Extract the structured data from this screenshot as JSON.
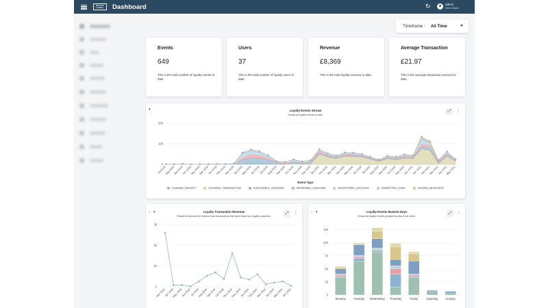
{
  "header": {
    "title": "Dashboard",
    "brand_lines": [
      "WHITE",
      "LABEL"
    ],
    "user_name": "admin",
    "user_org": "Demo Brand"
  },
  "sidebar": {
    "items": [
      {
        "label": "Dashboard"
      },
      {
        "label": "Analytics"
      },
      {
        "label": "Links"
      },
      {
        "label": "Activity"
      },
      {
        "label": "Rewards"
      },
      {
        "label": "Referrals"
      },
      {
        "label": "Marketing"
      },
      {
        "label": "Products"
      },
      {
        "label": "Retailers"
      },
      {
        "label": "Venues"
      },
      {
        "label": "Settings"
      }
    ]
  },
  "timeframe": {
    "label": "Timeframe :",
    "value": "All Time"
  },
  "stats": [
    {
      "title": "Events",
      "value": "649",
      "description": "This is the total number of loyalty events to date."
    },
    {
      "title": "Users",
      "value": "37",
      "description": "This is the total number of loyalty users to date."
    },
    {
      "title": "Revenue",
      "value": "£8,369",
      "description": "This is the total loyalty revenue to date."
    },
    {
      "title": "Average Transaction",
      "value": "£21.97",
      "description": "This is the average transaction amount to date."
    }
  ],
  "icons": {
    "menu": "hamburger-icon",
    "refresh": "refresh-icon",
    "user": "user-circle-icon",
    "expand": "expand-icon",
    "more": "more-vertical-icon",
    "filter": "filter-icon",
    "sort": "sort-down-icon",
    "dropdown": "chevron-down-icon"
  },
  "glyphs": {
    "expand": "⤢",
    "more": "⋮",
    "filter": "▾",
    "sort": "↓",
    "refresh": "↻"
  },
  "charts": {
    "stream": {
      "title": "Loyalty Events Stream",
      "subtitle": "Shows all loyalty events to date.",
      "legend_title": "Event Type"
    },
    "revenue": {
      "title": "Loyalty Transaction Revenue",
      "subtitle": "Shows the amount of revenue from transactions that were linked to a loyalty customer."
    },
    "busiest": {
      "title": "Loyalty Events Busiest Days",
      "subtitle": "Shows all loyalty events grouped by day of the week."
    }
  },
  "chart_data": [
    {
      "type": "area",
      "title": "Loyalty Events Stream",
      "subtitle": "Shows all loyalty events to date.",
      "legend_title": "Event Type",
      "ylim": [
        0,
        200
      ],
      "yticks": [
        0,
        100,
        200
      ],
      "x": [
        "Jul 2018",
        "Aug 2018",
        "Sep 2018",
        "Oct 2018",
        "Nov 2018",
        "Dec 2018",
        "Jan 2019",
        "Feb 2019",
        "Mar 2019",
        "Apr 2019",
        "May 2019",
        "Jun 2019",
        "Jul 2019",
        "Aug 2019",
        "Sep 2019",
        "Oct 2019",
        "Nov 2019",
        "Dec 2019",
        "Jan 2020",
        "Feb 2020",
        "Mar 2020",
        "Apr 2020",
        "May 2020",
        "Jun 2020",
        "Jul 2020",
        "Aug 2020",
        "Sep 2020",
        "Oct 2020",
        "Nov 2020",
        "Dec 2020",
        "Jan 2021",
        "Feb 2021",
        "Mar 2021",
        "Apr 2021",
        "May 2021"
      ],
      "series": [
        {
          "name": "CLAIMED_RECEIPT",
          "color": "#9fc0b0",
          "values": [
            0,
            0,
            0,
            0,
            0,
            0,
            0,
            0,
            0,
            2,
            3,
            3,
            2,
            0,
            0,
            0,
            0,
            0,
            0,
            0,
            0,
            0,
            0,
            0,
            0,
            0,
            0,
            0,
            0,
            0,
            0,
            0,
            0,
            0,
            0
          ]
        },
        {
          "name": "CLEARED_TRANSACTION",
          "color": "#d8d2a0",
          "values": [
            0,
            0,
            0,
            0,
            0,
            0,
            0,
            0,
            0,
            0,
            0,
            0,
            0,
            0,
            0,
            5,
            2,
            3,
            50,
            35,
            28,
            40,
            38,
            35,
            25,
            14,
            28,
            22,
            30,
            28,
            75,
            68,
            5,
            40,
            15
          ]
        },
        {
          "name": "PURCHASED_VOUCHER",
          "color": "#8fb3cf",
          "values": [
            0,
            0,
            0,
            0,
            0,
            0,
            0,
            0,
            0,
            20,
            30,
            28,
            20,
            8,
            3,
            5,
            3,
            5,
            5,
            5,
            3,
            4,
            5,
            4,
            3,
            2,
            3,
            4,
            5,
            4,
            10,
            12,
            5,
            6,
            3
          ]
        },
        {
          "name": "REDEEMED_VOUCHER",
          "color": "#e8a0a6",
          "values": [
            0,
            0,
            0,
            0,
            0,
            0,
            0,
            0,
            0,
            10,
            16,
            14,
            10,
            4,
            2,
            4,
            3,
            4,
            10,
            6,
            5,
            6,
            6,
            5,
            4,
            3,
            4,
            5,
            6,
            5,
            14,
            12,
            4,
            7,
            3
          ]
        },
        {
          "name": "REGISTERED_ACCOUNT",
          "color": "#b9d2dd",
          "values": [
            1,
            1,
            2,
            0,
            1,
            1,
            2,
            1,
            4,
            20,
            15,
            12,
            8,
            2,
            5,
            8,
            5,
            6,
            5,
            5,
            5,
            5,
            5,
            4,
            3,
            3,
            4,
            4,
            5,
            4,
            20,
            10,
            3,
            6,
            2
          ]
        },
        {
          "name": "SUBMITTED_CODE",
          "color": "#b0c8e6",
          "values": [
            0,
            0,
            0,
            0,
            0,
            0,
            0,
            0,
            0,
            5,
            8,
            6,
            4,
            1,
            1,
            2,
            1,
            2,
            3,
            2,
            2,
            2,
            2,
            2,
            1,
            1,
            2,
            2,
            2,
            2,
            10,
            6,
            2,
            3,
            2
          ]
        },
        {
          "name": "VIEWED_MICROSITE",
          "color": "#d8c88e",
          "values": [
            0,
            0,
            0,
            0,
            0,
            0,
            0,
            0,
            0,
            0,
            0,
            0,
            0,
            0,
            0,
            0,
            0,
            0,
            0,
            0,
            0,
            0,
            0,
            0,
            0,
            0,
            0,
            0,
            0,
            0,
            5,
            4,
            2,
            0,
            0
          ]
        }
      ]
    },
    {
      "type": "line",
      "title": "Loyalty Transaction Revenue",
      "subtitle": "Shows the amount of revenue from transactions that were linked to a loyalty customer.",
      "ylim": [
        0,
        3000
      ],
      "yticks": [
        0,
        1000,
        2000,
        3000
      ],
      "ytick_labels": [
        "0",
        "1k",
        "2k",
        "3k"
      ],
      "x": [
        "Mar 2019",
        "Apr 2019",
        "May 2019",
        "Jun 2019",
        "Jul 2019",
        "Aug 2019",
        "Sep 2019",
        "Oct 2019",
        "Nov 2019",
        "Dec 2019",
        "Jan 2020",
        "Feb 2020",
        "Mar 2020",
        "Apr 2020",
        "May 2020",
        "Jun 2020"
      ],
      "series": [
        {
          "color": "#9fc0b0",
          "values": [
            2600,
            80,
            80,
            20,
            250,
            530,
            690,
            380,
            1620,
            450,
            350,
            600,
            120,
            200,
            260,
            40
          ]
        }
      ]
    },
    {
      "type": "bar",
      "stacked": true,
      "title": "Loyalty Events Busiest Days",
      "subtitle": "Shows all loyalty events grouped by day of the week.",
      "ylim": [
        0,
        135
      ],
      "yticks": [
        0,
        25,
        50,
        75,
        100,
        125
      ],
      "categories": [
        "Monday",
        "Tuesday",
        "Wednesday",
        "Thursday",
        "Friday",
        "Saturday",
        "Sunday"
      ],
      "series": [
        {
          "name": "CLAIMED_RECEIPT",
          "color": "#9fc0b0",
          "values": [
            33,
            65,
            82,
            15,
            33,
            7,
            4
          ]
        },
        {
          "name": "PURCHASED_VOUCHER",
          "color": "#8fb3cf",
          "values": [
            2,
            5,
            3,
            25,
            2,
            0,
            0
          ]
        },
        {
          "name": "REDEEMED_VOUCHER",
          "color": "#e8a0a6",
          "values": [
            3,
            3,
            2,
            10,
            3,
            0,
            0
          ]
        },
        {
          "name": "REGISTERED_ACCOUNT",
          "color": "#b9d2dd",
          "values": [
            2,
            3,
            3,
            6,
            2,
            0,
            0
          ]
        },
        {
          "name": "SUBMITTED_CODE",
          "color": "#7e9fc2",
          "values": [
            10,
            20,
            18,
            12,
            25,
            2,
            3
          ]
        },
        {
          "name": "CLEARED_TRANSACTION",
          "color": "#d8c88e",
          "values": [
            3,
            2,
            14,
            24,
            14,
            0,
            0
          ]
        },
        {
          "name": "VIEWED_MICROSITE",
          "color": "#e3d9a8",
          "values": [
            2,
            2,
            7,
            7,
            4,
            0,
            0
          ]
        }
      ]
    }
  ]
}
